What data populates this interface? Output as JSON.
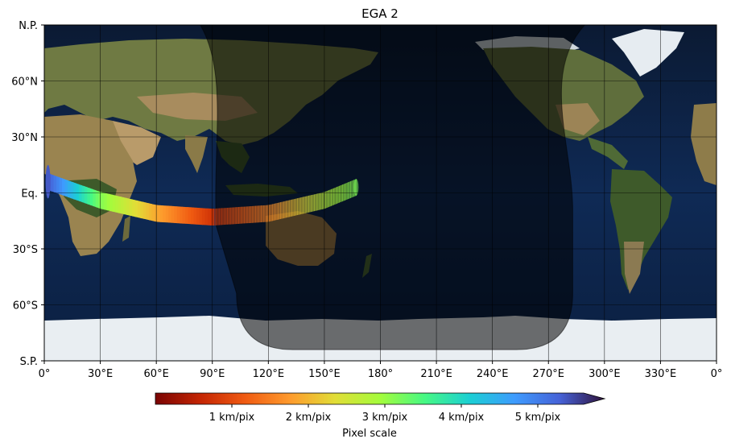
{
  "chart_data": {
    "type": "map",
    "title": "EGA 2",
    "projection": "equirectangular",
    "x_ticks": [
      "0°",
      "30°E",
      "60°E",
      "90°E",
      "120°E",
      "150°E",
      "180°",
      "210°E",
      "240°E",
      "270°E",
      "300°E",
      "330°E",
      "0°"
    ],
    "x_tick_values": [
      0,
      30,
      60,
      90,
      120,
      150,
      180,
      210,
      240,
      270,
      300,
      330,
      360
    ],
    "y_ticks": [
      "N.P.",
      "60°N",
      "30°N",
      "Eq.",
      "30°S",
      "60°S",
      "S.P."
    ],
    "y_tick_values": [
      90,
      60,
      30,
      0,
      -30,
      -60,
      -90
    ],
    "xlim": [
      0,
      360
    ],
    "ylim": [
      -90,
      90
    ],
    "grid": true,
    "background": "satellite earth imagery (Blue Marble style)",
    "night_side": {
      "description": "shaded night-side region",
      "lon_range": [
        90,
        283
      ],
      "lat_range": [
        -84,
        90
      ],
      "opacity": 0.55
    },
    "swath": {
      "name": "observation track",
      "centerline": [
        {
          "lon": 2,
          "lat": 6,
          "scale": 5.1
        },
        {
          "lon": 30,
          "lat": -4,
          "scale": 3.0
        },
        {
          "lon": 60,
          "lat": -11,
          "scale": 1.8
        },
        {
          "lon": 90,
          "lat": -13,
          "scale": 0.7
        },
        {
          "lon": 120,
          "lat": -11,
          "scale": 1.5
        },
        {
          "lon": 150,
          "lat": -4,
          "scale": 2.6
        },
        {
          "lon": 167,
          "lat": 3,
          "scale": 3.0
        }
      ],
      "half_width_deg": 4.5,
      "night_dimmed_from_lon": 90
    },
    "colorbar": {
      "label": "Pixel scale",
      "ticks": [
        "1 km/pix",
        "2 km/pix",
        "3 km/pix",
        "4 km/pix",
        "5 km/pix"
      ],
      "tick_values": [
        1,
        2,
        3,
        4,
        5
      ],
      "range": [
        0,
        5.6
      ],
      "extend": "max",
      "colormap": "turbo"
    }
  }
}
